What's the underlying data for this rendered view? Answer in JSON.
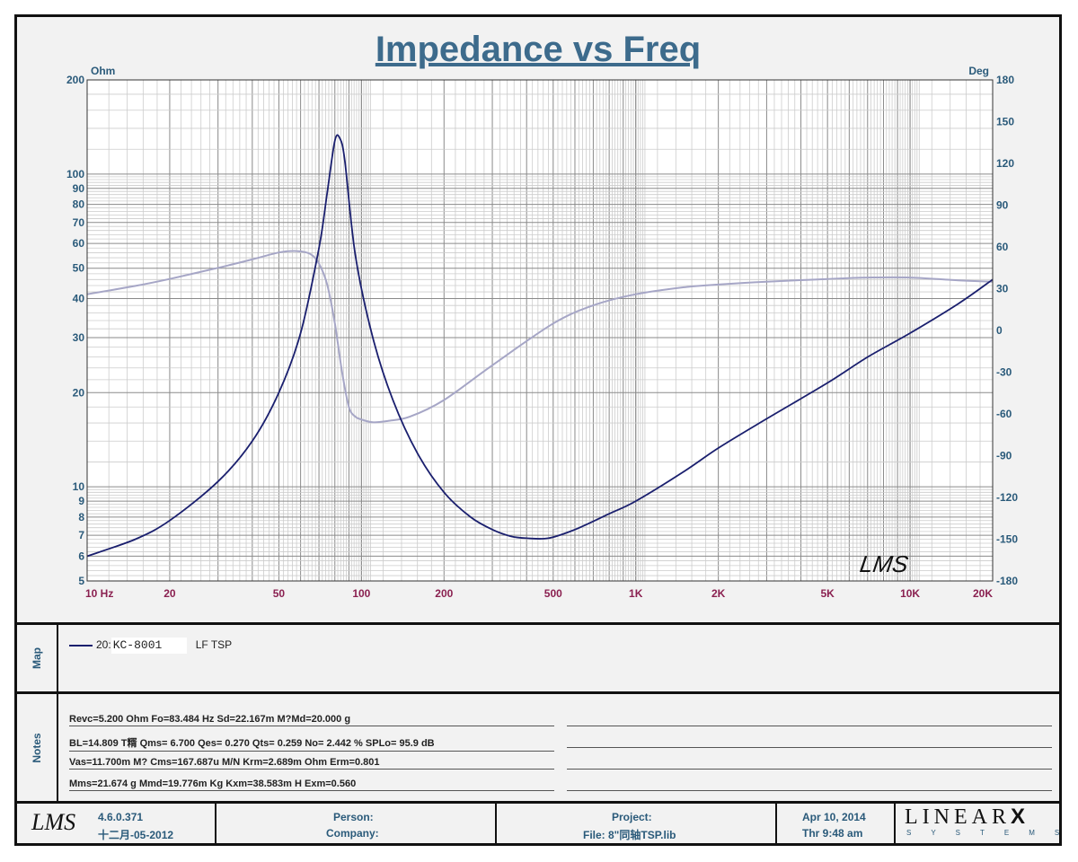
{
  "title": "Impedance vs Freq",
  "chart_data": {
    "type": "line",
    "x_scale": "log",
    "xlim": [
      10,
      20000
    ],
    "ylim_left": [
      5,
      200
    ],
    "y_scale_left": "log",
    "ylim_right": [
      -180,
      180
    ],
    "left_unit": "Ohm",
    "right_unit": "Deg",
    "x_ticks": [
      {
        "v": 10,
        "label": "10  Hz"
      },
      {
        "v": 20,
        "label": "20"
      },
      {
        "v": 50,
        "label": "50"
      },
      {
        "v": 100,
        "label": "100"
      },
      {
        "v": 200,
        "label": "200"
      },
      {
        "v": 500,
        "label": "500"
      },
      {
        "v": 1000,
        "label": "1K"
      },
      {
        "v": 2000,
        "label": "2K"
      },
      {
        "v": 5000,
        "label": "5K"
      },
      {
        "v": 10000,
        "label": "10K"
      },
      {
        "v": 20000,
        "label": "20K"
      }
    ],
    "y_left_ticks": [
      {
        "v": 200,
        "label": "200"
      },
      {
        "v": 100,
        "label": "100"
      },
      {
        "v": 90,
        "label": "90"
      },
      {
        "v": 80,
        "label": "80"
      },
      {
        "v": 70,
        "label": "70"
      },
      {
        "v": 60,
        "label": "60"
      },
      {
        "v": 50,
        "label": "50"
      },
      {
        "v": 40,
        "label": "40"
      },
      {
        "v": 30,
        "label": "30"
      },
      {
        "v": 20,
        "label": "20"
      },
      {
        "v": 10,
        "label": "10"
      },
      {
        "v": 9,
        "label": "9"
      },
      {
        "v": 8,
        "label": "8"
      },
      {
        "v": 7,
        "label": "7"
      },
      {
        "v": 6,
        "label": "6"
      },
      {
        "v": 5,
        "label": "5"
      }
    ],
    "y_right_ticks": [
      {
        "v": 180,
        "label": "180"
      },
      {
        "v": 150,
        "label": "150"
      },
      {
        "v": 120,
        "label": "120"
      },
      {
        "v": 90,
        "label": "90"
      },
      {
        "v": 60,
        "label": "60"
      },
      {
        "v": 30,
        "label": "30"
      },
      {
        "v": 0,
        "label": "0"
      },
      {
        "v": -30,
        "label": "-30"
      },
      {
        "v": -60,
        "label": "-60"
      },
      {
        "v": -90,
        "label": "-90"
      },
      {
        "v": -120,
        "label": "-120"
      },
      {
        "v": -150,
        "label": "-150"
      },
      {
        "v": -180,
        "label": "-180"
      }
    ],
    "series": [
      {
        "name": "KC-8001",
        "axis": "left",
        "color": "#1a1f6e",
        "x": [
          10,
          15,
          20,
          30,
          40,
          50,
          60,
          70,
          75,
          80,
          83.5,
          87,
          95,
          110,
          130,
          160,
          200,
          250,
          300,
          350,
          400,
          480,
          600,
          800,
          1000,
          1500,
          2000,
          3000,
          5000,
          7000,
          10000,
          15000,
          20000
        ],
        "y": [
          6.0,
          6.8,
          7.8,
          10.4,
          14.0,
          20.0,
          31.0,
          58.0,
          87.0,
          128.0,
          130.0,
          110.0,
          55.0,
          30.0,
          19.0,
          12.8,
          9.6,
          8.0,
          7.3,
          6.95,
          6.85,
          6.85,
          7.3,
          8.2,
          9.0,
          11.2,
          13.3,
          16.5,
          21.5,
          26.0,
          31.0,
          38.5,
          46.0
        ]
      },
      {
        "name": "",
        "axis": "right",
        "color": "#a6a6c6",
        "x": [
          10,
          15,
          20,
          30,
          40,
          50,
          58,
          65,
          70,
          75,
          80,
          85,
          90,
          95,
          100,
          110,
          125,
          150,
          200,
          300,
          500,
          700,
          1000,
          1500,
          2000,
          3000,
          5000,
          7000,
          10000,
          15000,
          20000
        ],
        "y": [
          26,
          32,
          37,
          45,
          51,
          56,
          57,
          55,
          48,
          33,
          5,
          -30,
          -55,
          -62,
          -64,
          -66,
          -65,
          -62,
          -50,
          -25,
          5,
          18,
          26,
          31,
          33,
          35,
          37,
          38,
          38,
          36,
          35
        ]
      }
    ]
  },
  "legend": {
    "prefix": "20:",
    "box_text": "KC-8001",
    "label": "LF TSP"
  },
  "map_label": "Map",
  "notes_label": "Notes",
  "notes": [
    "Revc=5.200 Ohm  Fo=83.484 Hz  Sd=22.167m M?Md=20.000 g",
    "BL=14.809 T糈  Qms= 6.700  Qes= 0.270  Qts= 0.259  No= 2.442 %  SPLo= 95.9 dB",
    "Vas=11.700m M? Cms=167.687u M/N  Krm=2.689m Ohm  Erm=0.801",
    "Mms=21.674 g  Mmd=19.776m Kg  Kxm=38.583m H  Exm=0.560"
  ],
  "watermark": "LMS",
  "footer": {
    "logo": "LMS",
    "version": "4.6.0.371",
    "build_date": "十二月-05-2012",
    "person": "Person:",
    "company": "Company:",
    "project": "Project:",
    "file": "File: 8\"同轴TSP.lib",
    "date": "Apr 10, 2014",
    "time": "Thr  9:48 am",
    "brand_top": "LINEAR",
    "brand_x": "X",
    "brand_bottom": "SYSTEMS"
  }
}
